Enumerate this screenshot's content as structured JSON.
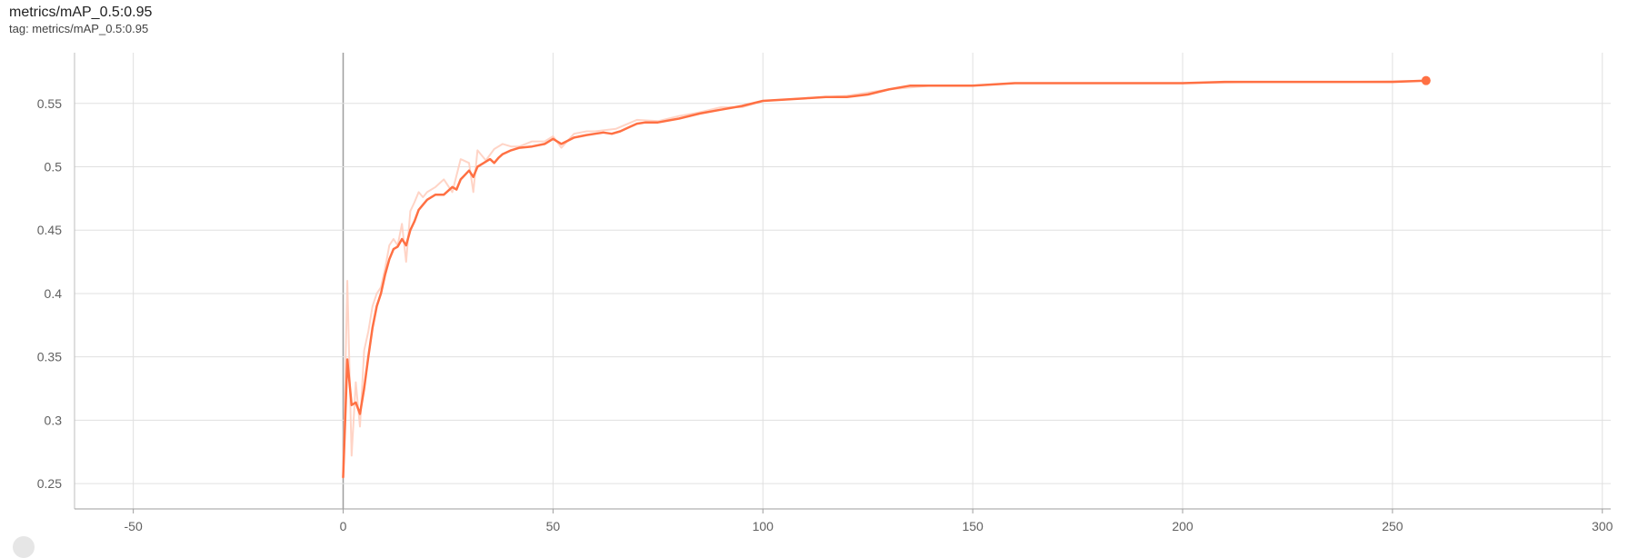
{
  "header": {
    "title": "metrics/mAP_0.5:0.95",
    "tag": "tag: metrics/mAP_0.5:0.95"
  },
  "chart_data": {
    "type": "line",
    "title": "metrics/mAP_0.5:0.95",
    "subtitle": "tag: metrics/mAP_0.5:0.95",
    "xlabel": "",
    "ylabel": "",
    "xlim": [
      -64,
      302
    ],
    "ylim": [
      0.23,
      0.59
    ],
    "x_ticks": [
      -50,
      0,
      50,
      100,
      150,
      200,
      250,
      300
    ],
    "y_ticks": [
      0.25,
      0.3,
      0.35,
      0.4,
      0.45,
      0.5,
      0.55
    ],
    "x_tick_labels": [
      "-50",
      "0",
      "50",
      "100",
      "150",
      "200",
      "250",
      "300"
    ],
    "y_tick_labels": [
      "0.25",
      "0.3",
      "0.35",
      "0.4",
      "0.45",
      "0.5",
      "0.55"
    ],
    "grid": true,
    "legend": "none",
    "colors": {
      "line": "#ff7043",
      "raw": "#ffccbc",
      "grid": "#e0e0e0",
      "zero_axis": "#9e9e9e"
    },
    "series": [
      {
        "kind": "smoothed",
        "x": [
          0,
          1,
          2,
          3,
          4,
          5,
          6,
          7,
          8,
          9,
          10,
          11,
          12,
          13,
          14,
          15,
          16,
          17,
          18,
          19,
          20,
          22,
          24,
          26,
          27,
          28,
          30,
          31,
          32,
          33,
          35,
          36,
          37,
          38,
          40,
          42,
          45,
          48,
          50,
          52,
          55,
          58,
          60,
          62,
          64,
          66,
          68,
          70,
          72,
          75,
          80,
          85,
          90,
          95,
          100,
          110,
          115,
          120,
          125,
          130,
          135,
          140,
          145,
          150,
          155,
          160,
          170,
          180,
          190,
          200,
          210,
          220,
          230,
          240,
          250,
          258
        ],
        "y": [
          0.255,
          0.348,
          0.312,
          0.314,
          0.305,
          0.325,
          0.35,
          0.373,
          0.39,
          0.4,
          0.415,
          0.427,
          0.435,
          0.437,
          0.443,
          0.438,
          0.45,
          0.457,
          0.466,
          0.47,
          0.474,
          0.478,
          0.478,
          0.484,
          0.482,
          0.49,
          0.497,
          0.492,
          0.5,
          0.502,
          0.506,
          0.503,
          0.507,
          0.51,
          0.513,
          0.515,
          0.516,
          0.518,
          0.522,
          0.518,
          0.523,
          0.525,
          0.526,
          0.527,
          0.526,
          0.528,
          0.531,
          0.534,
          0.535,
          0.535,
          0.538,
          0.542,
          0.545,
          0.548,
          0.552,
          0.554,
          0.555,
          0.555,
          0.557,
          0.561,
          0.564,
          0.564,
          0.564,
          0.564,
          0.565,
          0.566,
          0.566,
          0.566,
          0.566,
          0.566,
          0.567,
          0.567,
          0.567,
          0.567,
          0.567,
          0.568
        ]
      },
      {
        "kind": "raw",
        "x": [
          0,
          1,
          2,
          3,
          4,
          5,
          6,
          7,
          8,
          9,
          10,
          11,
          12,
          13,
          14,
          15,
          16,
          17,
          18,
          19,
          20,
          22,
          24,
          26,
          28,
          30,
          31,
          32,
          34,
          36,
          38,
          40,
          42,
          45,
          48,
          50,
          52,
          55,
          58,
          60,
          65,
          70,
          75,
          80,
          85,
          90,
          95,
          100,
          110,
          120,
          130,
          140,
          150,
          160,
          180,
          200,
          220,
          240,
          258
        ],
        "y": [
          0.255,
          0.41,
          0.272,
          0.33,
          0.295,
          0.355,
          0.37,
          0.39,
          0.4,
          0.405,
          0.42,
          0.438,
          0.443,
          0.438,
          0.455,
          0.425,
          0.465,
          0.472,
          0.48,
          0.476,
          0.48,
          0.484,
          0.49,
          0.48,
          0.506,
          0.503,
          0.48,
          0.513,
          0.505,
          0.514,
          0.518,
          0.516,
          0.516,
          0.52,
          0.52,
          0.524,
          0.515,
          0.526,
          0.528,
          0.528,
          0.53,
          0.537,
          0.536,
          0.54,
          0.543,
          0.547,
          0.547,
          0.552,
          0.554,
          0.556,
          0.561,
          0.564,
          0.564,
          0.566,
          0.566,
          0.566,
          0.567,
          0.567,
          0.568
        ]
      }
    ]
  }
}
